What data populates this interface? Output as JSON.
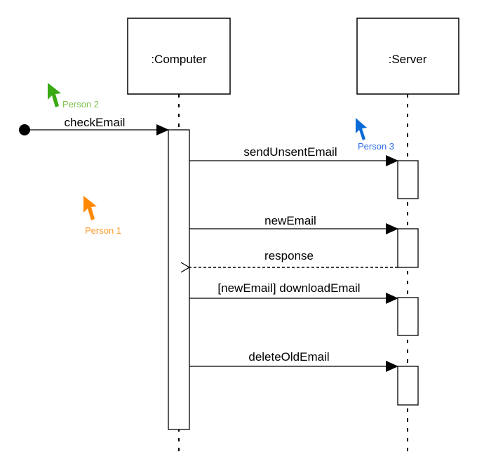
{
  "lifelines": [
    {
      "name": ":Computer"
    },
    {
      "name": ":Server"
    }
  ],
  "messages": [
    {
      "label": "checkEmail",
      "style": "found-message"
    },
    {
      "label": "sendUnsentEmail",
      "style": "synchronous"
    },
    {
      "label": "newEmail",
      "style": "synchronous"
    },
    {
      "label": "response",
      "style": "reply"
    },
    {
      "label": "[newEmail] downloadEmail",
      "style": "synchronous"
    },
    {
      "label": "deleteOldEmail",
      "style": "synchronous"
    }
  ],
  "cursors": [
    {
      "label": "Person 2",
      "color": "#3aaa12",
      "text_color": "#7cc24c"
    },
    {
      "label": "Person 1",
      "color": "#ff8800",
      "text_color": "#ff9a2a"
    },
    {
      "label": "Person 3",
      "color": "#0a6ad6",
      "text_color": "#2f6de8"
    }
  ]
}
